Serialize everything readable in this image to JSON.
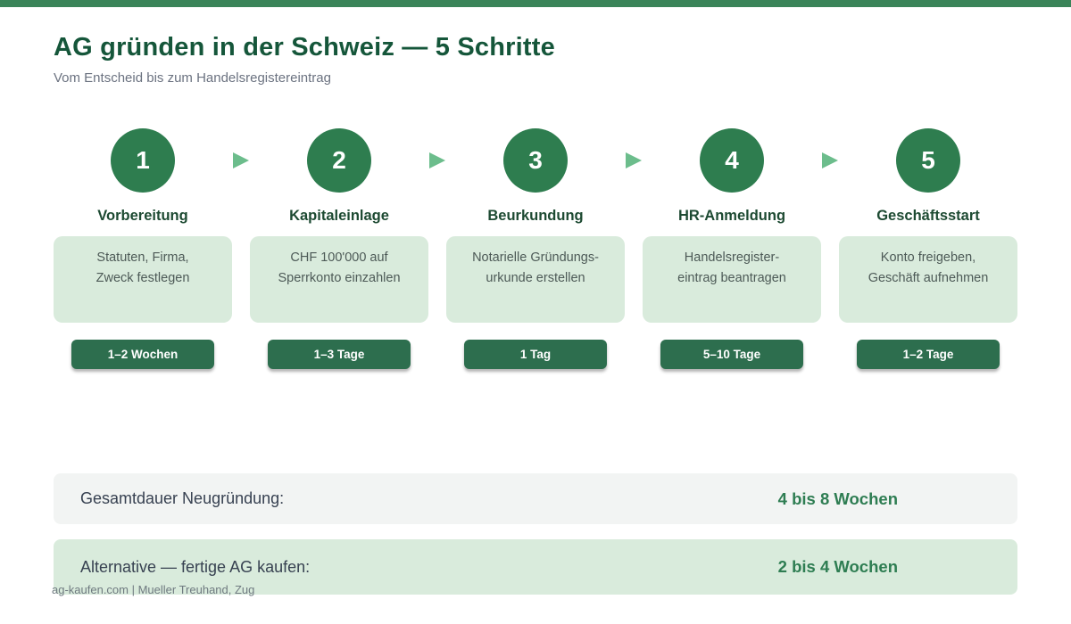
{
  "page": {
    "title": "AG gründen in der Schweiz — 5 Schritte",
    "subtitle": "Vom Entscheid bis zum Handelsregistereintrag",
    "footer": "ag-kaufen.com | Mueller Treuhand, Zug"
  },
  "steps": [
    {
      "number": "1",
      "name": "Vorbereitung",
      "description_line1": "Statuten, Firma,",
      "description_line2": "Zweck festlegen",
      "duration": "1–2 Wochen"
    },
    {
      "number": "2",
      "name": "Kapitaleinlage",
      "description_line1": "CHF 100'000 auf",
      "description_line2": "Sperrkonto einzahlen",
      "duration": "1–3 Tage"
    },
    {
      "number": "3",
      "name": "Beurkundung",
      "description_line1": "Notarielle Gründungs-",
      "description_line2": "urkunde erstellen",
      "duration": "1 Tag"
    },
    {
      "number": "4",
      "name": "HR-Anmeldung",
      "description_line1": "Handelsregister-",
      "description_line2": "eintrag beantragen",
      "duration": "5–10 Tage"
    },
    {
      "number": "5",
      "name": "Geschäftsstart",
      "description_line1": "Konto freigeben,",
      "description_line2": "Geschäft aufnehmen",
      "duration": "1–2 Tage"
    }
  ],
  "summary": [
    {
      "label": "Gesamtdauer Neugründung:",
      "value": "4 bis 8 Wochen"
    },
    {
      "label": "Alternative — fertige AG kaufen:",
      "value": "2 bis 4 Wochen"
    }
  ],
  "colors": {
    "top_bar": "#3a8459",
    "title": "#15563a",
    "circle": "#2e7d4f",
    "arrow": "#6cbd8c",
    "step_box_bg": "#d9ebdc",
    "badge_bg": "#2d6e4e",
    "summary_gray_bg": "#f2f4f3",
    "summary_green_bg": "#d9ebdc",
    "value_green": "#2e7d52"
  }
}
